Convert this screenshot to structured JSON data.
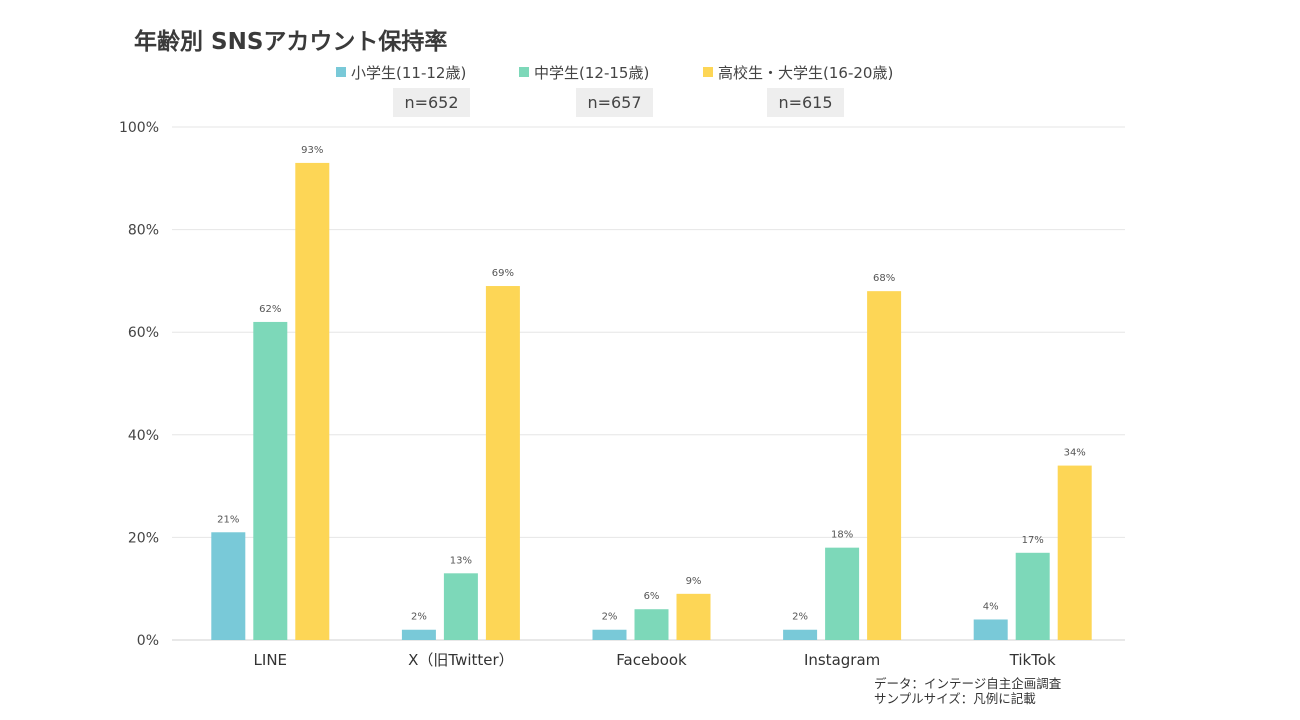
{
  "title": "年齢別 SNSアカウント保持率",
  "legend": [
    {
      "label": "小学生(11-12歳)",
      "color": "#79c9d8"
    },
    {
      "label": "中学生(12-15歳)",
      "color": "#7dd8b9"
    },
    {
      "label": "高校生・大学生(16-20歳)",
      "color": "#fdd656"
    }
  ],
  "sample_sizes": [
    "n=652",
    "n=657",
    "n=615"
  ],
  "source": {
    "line1": "データ：インテージ自主企画調査",
    "line2": "サンプルサイズ：凡例に記載"
  },
  "chart_data": {
    "type": "bar",
    "categories": [
      "LINE",
      "X（旧Twitter）",
      "Facebook",
      "Instagram",
      "TikTok"
    ],
    "series": [
      {
        "name": "小学生(11-12歳)",
        "values": [
          21,
          2,
          2,
          2,
          4
        ],
        "labels": [
          "21%",
          "2%",
          "2%",
          "2%",
          "4%"
        ],
        "color": "#79c9d8"
      },
      {
        "name": "中学生(12-15歳)",
        "values": [
          62,
          13,
          6,
          18,
          17
        ],
        "labels": [
          "62%",
          "13%",
          "6%",
          "18%",
          "17%"
        ],
        "color": "#7dd8b9"
      },
      {
        "name": "高校生・大学生(16-20歳)",
        "values": [
          93,
          69,
          9,
          68,
          34
        ],
        "labels": [
          "93%",
          "69%",
          "9%",
          "68%",
          "34%"
        ],
        "color": "#fdd656"
      }
    ],
    "ylim": [
      0,
      100
    ],
    "yticks": [
      0,
      20,
      40,
      60,
      80,
      100
    ],
    "ytick_labels": [
      "0%",
      "20%",
      "40%",
      "60%",
      "80%",
      "100%"
    ],
    "xlabel": "",
    "ylabel": "",
    "grid": true,
    "legend_position": "top"
  }
}
